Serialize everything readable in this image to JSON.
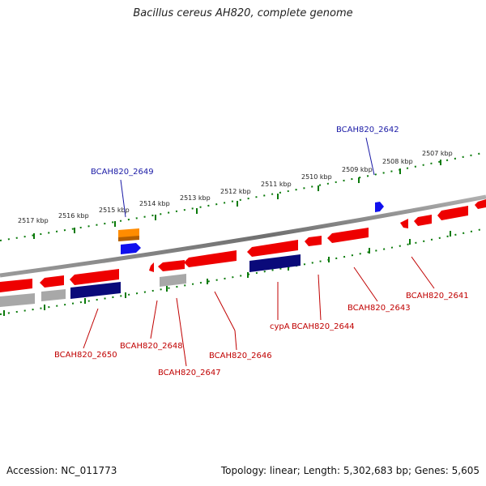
{
  "title": "Bacillus cereus AH820, complete genome",
  "footer": {
    "accession": "Accession: NC_011773",
    "summary": "Topology: linear; Length: 5,302,683 bp; Genes: 5,605"
  },
  "kbp_labels": [
    "2517 kbp",
    "2516 kbp",
    "2515 kbp",
    "2514 kbp",
    "2513 kbp",
    "2512 kbp",
    "2511 kbp",
    "2510 kbp",
    "2509 kbp",
    "2508 kbp",
    "2507 kbp"
  ],
  "gene_labels": {
    "g2649": "BCAH820_2649",
    "g2642": "BCAH820_2642",
    "g2650": "BCAH820_2650",
    "g2648": "BCAH820_2648",
    "g2647": "BCAH820_2647",
    "g2646": "BCAH820_2646",
    "cypA": "cypA",
    "g2644": "BCAH820_2644",
    "g2643": "BCAH820_2643",
    "g2641": "BCAH820_2641"
  },
  "colors": {
    "gene_red": "#ee0000",
    "gene_navy": "#0a0a7a",
    "gene_gray": "#a8a8a8",
    "gene_orange": "#ff8c00",
    "gene_blue": "#1010ee",
    "tick_green": "#0a7a0a",
    "backbone": "#8a8a8a"
  }
}
